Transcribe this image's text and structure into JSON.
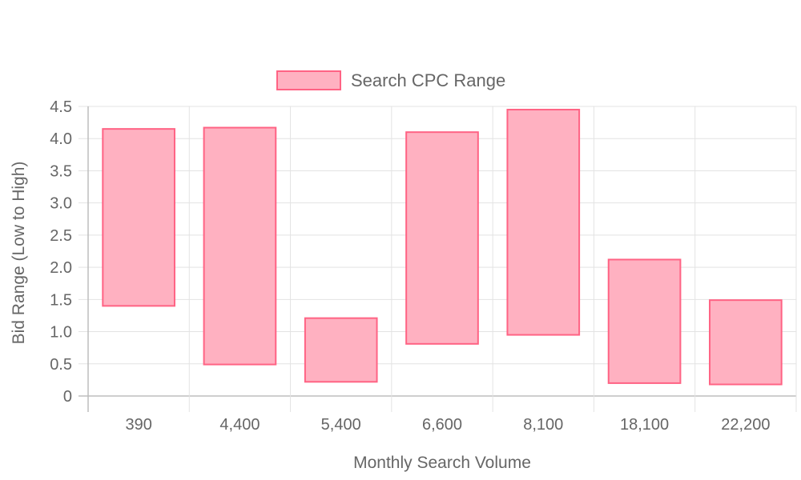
{
  "chart_data": {
    "type": "bar",
    "subtype": "floating-range",
    "title": "",
    "xlabel": "Monthly Search Volume",
    "ylabel": "Bid Range (Low to High)",
    "categories": [
      "390",
      "4,400",
      "5,400",
      "6,600",
      "8,100",
      "18,100",
      "22,200"
    ],
    "series": [
      {
        "name": "Search CPC Range",
        "ranges": [
          [
            1.4,
            4.15
          ],
          [
            0.49,
            4.17
          ],
          [
            0.22,
            1.21
          ],
          [
            0.81,
            4.1
          ],
          [
            0.95,
            4.45
          ],
          [
            0.2,
            2.12
          ],
          [
            0.18,
            1.49
          ]
        ],
        "fill_color": "#ffb1c1",
        "border_color": "#ff6384"
      }
    ],
    "ylim": [
      0,
      4.5
    ],
    "y_ticks": [
      "0",
      "0.5",
      "1.0",
      "1.5",
      "2.0",
      "2.5",
      "3.0",
      "3.5",
      "4.0",
      "4.5"
    ],
    "grid": true,
    "legend_position": "top"
  }
}
